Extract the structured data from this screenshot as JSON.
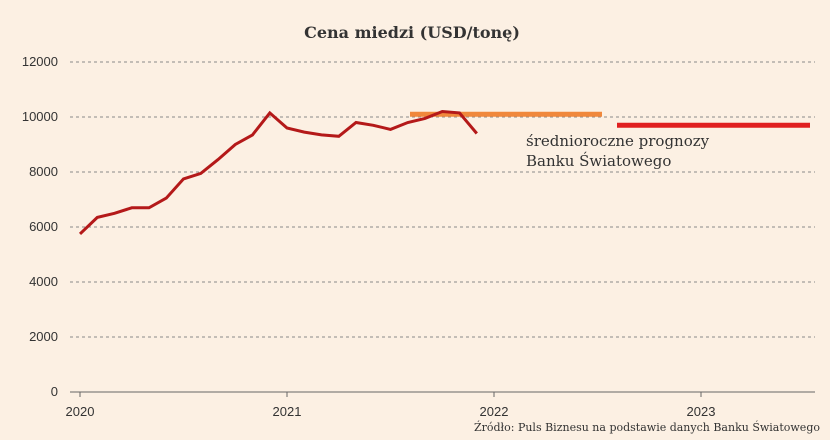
{
  "chart_data": {
    "type": "line",
    "title": "Cena miedzi (USD/tonę)",
    "xlabel": "",
    "ylabel": "",
    "ylim": [
      0,
      12000
    ],
    "y_ticks": [
      0,
      2000,
      4000,
      6000,
      8000,
      10000,
      12000
    ],
    "x_ticks": [
      "2020",
      "2021",
      "2022",
      "2023"
    ],
    "grid": true,
    "series": [
      {
        "color": "#b41919",
        "x": [
          "2020-01",
          "2020-02",
          "2020-03",
          "2020-04",
          "2020-05",
          "2020-06",
          "2020-07",
          "2020-08",
          "2020-09",
          "2020-10",
          "2020-11",
          "2020-12",
          "2021-01",
          "2021-02",
          "2021-03",
          "2021-04",
          "2021-05",
          "2021-06",
          "2021-07",
          "2021-08",
          "2021-09",
          "2021-10",
          "2021-11",
          "2021-12"
        ],
        "values": [
          5750,
          6350,
          6500,
          6700,
          6700,
          7050,
          7750,
          7950,
          8450,
          9000,
          9350,
          10150,
          9600,
          9450,
          9350,
          9300,
          9800,
          9700,
          9550,
          9800,
          9950,
          10200,
          10150,
          9400
        ]
      }
    ],
    "forecasts": [
      {
        "year": "2022",
        "value": 10100,
        "color": "#f0883c"
      },
      {
        "year": "2023",
        "value": 9700,
        "color": "#e02020"
      }
    ],
    "annotation": [
      "średnioroczne prognozy",
      "Banku Światowego"
    ],
    "source": "Źródło: Puls Biznesu na podstawie danych Banku Światowego"
  }
}
